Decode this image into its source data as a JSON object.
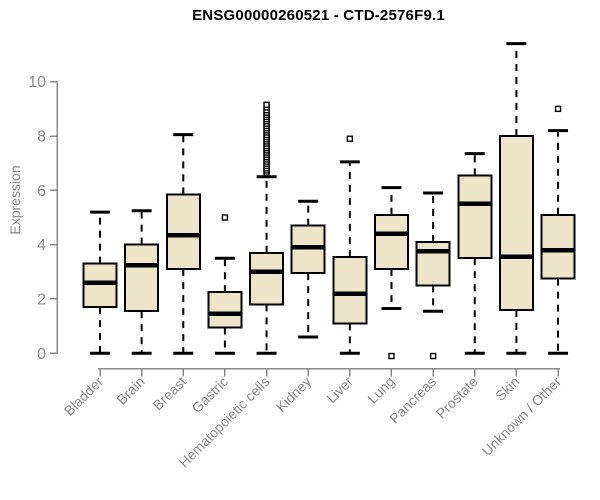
{
  "chart_data": {
    "type": "boxplot",
    "title": "ENSG00000260521 - CTD-2576F9.1",
    "xlabel": "",
    "ylabel": "Expression",
    "ylim": [
      0,
      11.5
    ],
    "yticks": [
      0,
      2,
      4,
      6,
      8,
      10
    ],
    "grid": false,
    "legend": "none",
    "categories": [
      "Bladder",
      "Brain",
      "Breast",
      "Gastric",
      "Hematopoietic cells",
      "Kidney",
      "Liver",
      "Lung",
      "Pancreas",
      "Prostate",
      "Skin",
      "Unknown / Other"
    ],
    "boxes": [
      {
        "category": "Bladder",
        "whisker_low": 0,
        "q1": 1.7,
        "median": 2.6,
        "q3": 3.3,
        "whisker_high": 5.2,
        "outliers": []
      },
      {
        "category": "Brain",
        "whisker_low": 0,
        "q1": 1.55,
        "median": 3.25,
        "q3": 4.0,
        "whisker_high": 5.25,
        "outliers": []
      },
      {
        "category": "Breast",
        "whisker_low": 0,
        "q1": 3.1,
        "median": 4.35,
        "q3": 5.85,
        "whisker_high": 8.05,
        "outliers": []
      },
      {
        "category": "Gastric",
        "whisker_low": 0,
        "q1": 0.95,
        "median": 1.45,
        "q3": 2.25,
        "whisker_high": 3.5,
        "outliers": [
          5.0
        ]
      },
      {
        "category": "Hematopoietic cells",
        "whisker_low": 0,
        "q1": 1.8,
        "median": 3.0,
        "q3": 3.7,
        "whisker_high": 6.5,
        "outliers": [
          6.65,
          6.73,
          6.81,
          6.9,
          6.98,
          7.06,
          7.14,
          7.22,
          7.31,
          7.39,
          7.47,
          7.55,
          7.63,
          7.72,
          7.8,
          7.88,
          7.96,
          8.04,
          8.13,
          8.21,
          8.29,
          8.37,
          8.45,
          8.54,
          8.62,
          8.7,
          8.78,
          8.86,
          8.95,
          9.05,
          9.15
        ]
      },
      {
        "category": "Kidney",
        "whisker_low": 0.6,
        "q1": 2.95,
        "median": 3.9,
        "q3": 4.7,
        "whisker_high": 5.6,
        "outliers": []
      },
      {
        "category": "Liver",
        "whisker_low": 0,
        "q1": 1.1,
        "median": 2.2,
        "q3": 3.55,
        "whisker_high": 7.05,
        "outliers": [
          7.9
        ]
      },
      {
        "category": "Lung",
        "whisker_low": 1.65,
        "q1": 3.1,
        "median": 4.4,
        "q3": 5.1,
        "whisker_high": 6.1,
        "outliers": [
          -0.1
        ]
      },
      {
        "category": "Pancreas",
        "whisker_low": 1.55,
        "q1": 2.5,
        "median": 3.75,
        "q3": 4.1,
        "whisker_high": 5.9,
        "outliers": [
          -0.1
        ]
      },
      {
        "category": "Prostate",
        "whisker_low": 0,
        "q1": 3.5,
        "median": 5.5,
        "q3": 6.55,
        "whisker_high": 7.35,
        "outliers": []
      },
      {
        "category": "Skin",
        "whisker_low": 0,
        "q1": 1.6,
        "median": 3.55,
        "q3": 8.0,
        "whisker_high": 11.4,
        "outliers": []
      },
      {
        "category": "Unknown / Other",
        "whisker_low": 0,
        "q1": 2.75,
        "median": 3.8,
        "q3": 5.1,
        "whisker_high": 8.2,
        "outliers": [
          9.0
        ]
      }
    ],
    "style": {
      "box_fill": "#ECE5CA",
      "box_stroke": "#000000",
      "median_color": "#000000",
      "whisker_color": "#000000",
      "outlier_shape": "open-square",
      "axis_color": "#8a8a8a",
      "title_color": "#000000",
      "background": "#ffffff"
    }
  }
}
